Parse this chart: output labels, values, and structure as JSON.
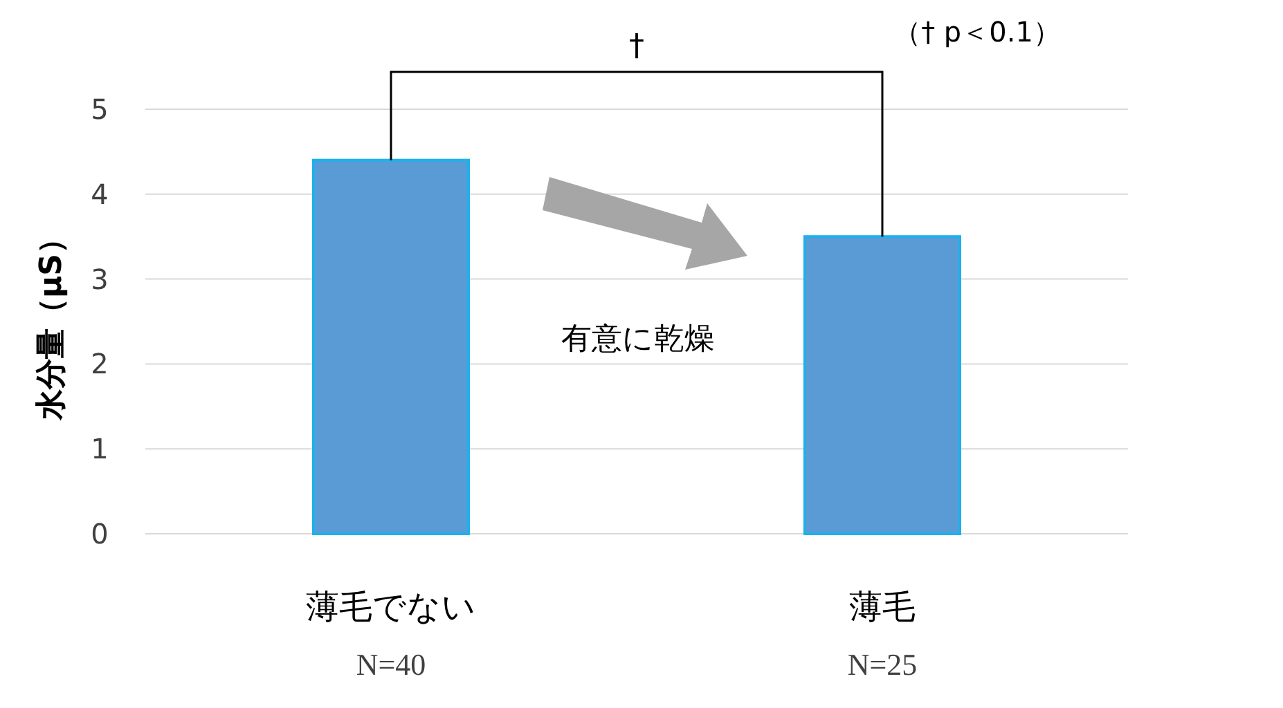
{
  "chart_data": {
    "type": "bar",
    "ylabel": "水分量（μS）",
    "categories": [
      "薄毛でない",
      "薄毛"
    ],
    "values": [
      4.4,
      3.5
    ],
    "color": "#5b9bd5",
    "ylim": [
      0,
      5
    ],
    "yticks": [
      0,
      1,
      2,
      3,
      4,
      5
    ],
    "grid": "y",
    "annotations": [
      "†",
      "（† p＜0.1）",
      "有意に乾燥",
      "N=40",
      "N=25"
    ]
  }
}
